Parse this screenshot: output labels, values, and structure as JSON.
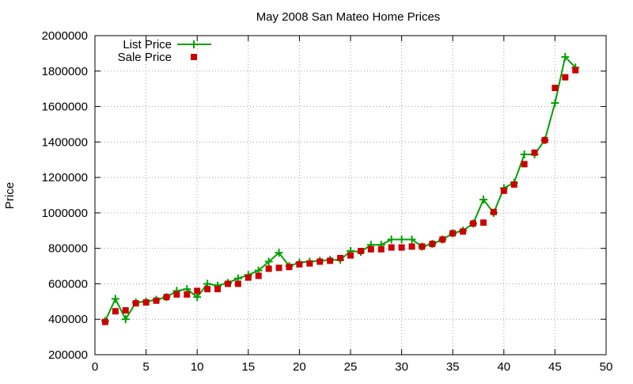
{
  "chart_data": {
    "type": "line",
    "title": "May 2008 San Mateo Home Prices",
    "xlabel": "",
    "ylabel": "Price",
    "xlim": [
      0,
      50
    ],
    "ylim": [
      200000,
      2000000
    ],
    "x_ticks": [
      0,
      5,
      10,
      15,
      20,
      25,
      30,
      35,
      40,
      45,
      50
    ],
    "y_ticks": [
      200000,
      400000,
      600000,
      800000,
      1000000,
      1200000,
      1400000,
      1600000,
      1800000,
      2000000
    ],
    "grid": true,
    "legend_position": "top-left",
    "x": [
      1,
      2,
      3,
      4,
      5,
      6,
      7,
      8,
      9,
      10,
      11,
      12,
      13,
      14,
      15,
      16,
      17,
      18,
      19,
      20,
      21,
      22,
      23,
      24,
      25,
      26,
      27,
      28,
      29,
      30,
      31,
      32,
      33,
      34,
      35,
      36,
      37,
      38,
      39,
      40,
      41,
      42,
      43,
      44,
      45,
      46,
      47
    ],
    "series": [
      {
        "name": "List Price",
        "style": "linespoints",
        "color": "#00a000",
        "values": [
          390000,
          515000,
          400000,
          495000,
          500000,
          510000,
          525000,
          560000,
          570000,
          525000,
          600000,
          590000,
          605000,
          630000,
          650000,
          675000,
          725000,
          775000,
          700000,
          720000,
          725000,
          730000,
          735000,
          735000,
          785000,
          780000,
          820000,
          820000,
          850000,
          850000,
          850000,
          810000,
          825000,
          850000,
          885000,
          900000,
          940000,
          1075000,
          1000000,
          1140000,
          1170000,
          1330000,
          1330000,
          1410000,
          1620000,
          1880000,
          1820000
        ]
      },
      {
        "name": "Sale Price",
        "style": "points",
        "color": "#cc0000",
        "values": [
          385000,
          445000,
          450000,
          490000,
          495000,
          505000,
          525000,
          540000,
          540000,
          560000,
          570000,
          570000,
          600000,
          600000,
          635000,
          645000,
          685000,
          690000,
          695000,
          710000,
          715000,
          725000,
          730000,
          745000,
          760000,
          785000,
          795000,
          795000,
          805000,
          805000,
          810000,
          810000,
          825000,
          850000,
          885000,
          895000,
          940000,
          945000,
          1005000,
          1125000,
          1160000,
          1275000,
          1340000,
          1410000,
          1705000,
          1765000,
          1805000
        ]
      }
    ]
  }
}
